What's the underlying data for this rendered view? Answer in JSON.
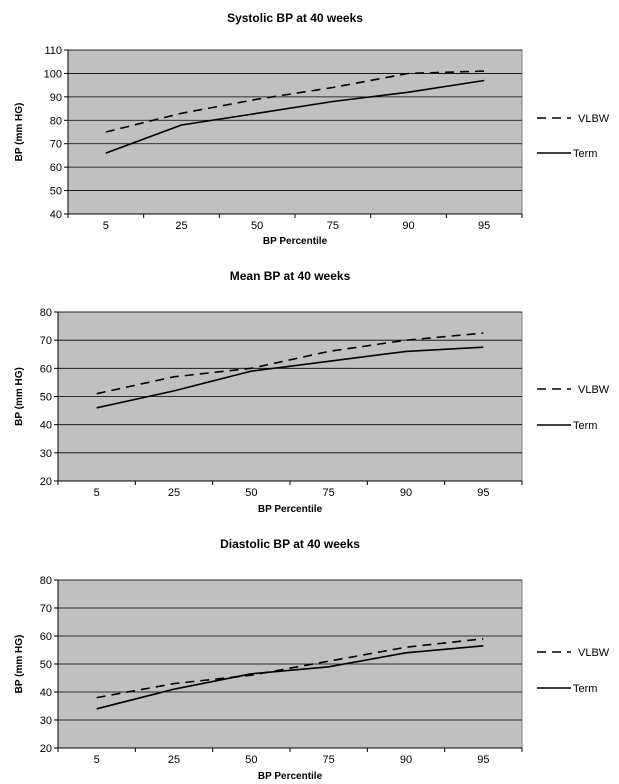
{
  "chart_data": [
    {
      "type": "line",
      "title": "Systolic BP at 40 weeks",
      "xlabel": "BP Percentile",
      "ylabel": "BP (mm HG)",
      "categories": [
        "5",
        "25",
        "50",
        "75",
        "90",
        "95"
      ],
      "ylim": [
        40,
        110
      ],
      "yticks": [
        40,
        50,
        60,
        70,
        80,
        90,
        100,
        110
      ],
      "grid": true,
      "legend": "right",
      "plot_background": "#c0c0c0",
      "series": [
        {
          "name": "VLBW",
          "dashed": true,
          "values": [
            75,
            83,
            89,
            94,
            100,
            101
          ]
        },
        {
          "name": "Term",
          "dashed": false,
          "values": [
            66,
            78,
            83,
            88,
            92,
            97
          ]
        }
      ]
    },
    {
      "type": "line",
      "title": "Mean BP at 40 weeks",
      "xlabel": "BP Percentile",
      "ylabel": "BP (mm HG)",
      "categories": [
        "5",
        "25",
        "50",
        "75",
        "90",
        "95"
      ],
      "ylim": [
        20,
        80
      ],
      "yticks": [
        20,
        30,
        40,
        50,
        60,
        70,
        80
      ],
      "grid": true,
      "legend": "right",
      "plot_background": "#c0c0c0",
      "series": [
        {
          "name": "VLBW",
          "dashed": true,
          "values": [
            51,
            57,
            60,
            66,
            70,
            72.5
          ]
        },
        {
          "name": "Term",
          "dashed": false,
          "values": [
            46,
            52,
            59,
            62.5,
            66,
            67.5
          ]
        }
      ]
    },
    {
      "type": "line",
      "title": "Diastolic BP at 40 weeks",
      "xlabel": "BP Percentile",
      "ylabel": "BP (mm HG)",
      "categories": [
        "5",
        "25",
        "50",
        "75",
        "90",
        "95"
      ],
      "ylim": [
        20,
        80
      ],
      "yticks": [
        20,
        30,
        40,
        50,
        60,
        70,
        80
      ],
      "grid": true,
      "legend": "right",
      "plot_background": "#c0c0c0",
      "series": [
        {
          "name": "VLBW",
          "dashed": true,
          "values": [
            38,
            43,
            46,
            51,
            56,
            59
          ]
        },
        {
          "name": "Term",
          "dashed": false,
          "values": [
            34,
            41,
            46.5,
            49,
            54,
            56.5
          ]
        }
      ]
    }
  ]
}
